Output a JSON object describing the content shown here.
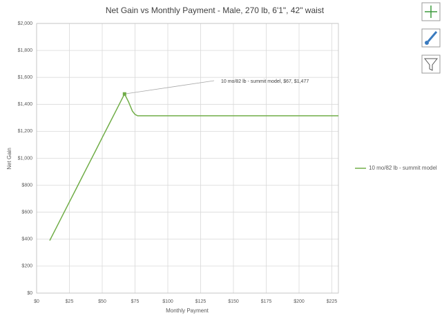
{
  "chart_data": {
    "type": "line",
    "title": "Net Gain vs Monthly Payment - Male, 270 lb, 6'1\", 42\" waist",
    "x_label": "Monthly Payment",
    "y_label": "Net Gain",
    "x": [
      10,
      15,
      20,
      25,
      30,
      35,
      40,
      45,
      50,
      55,
      60,
      65,
      67,
      70,
      73,
      75,
      77,
      80,
      100,
      150,
      200,
      230
    ],
    "series": [
      {
        "name": "10 mo/82 lb - summit model",
        "color": "#70ad47",
        "values": [
          390,
          485,
          581,
          676,
          771,
          867,
          962,
          1057,
          1153,
          1248,
          1343,
          1439,
          1477,
          1420,
          1350,
          1325,
          1315,
          1315,
          1315,
          1315,
          1315,
          1315
        ]
      }
    ],
    "annotation": "10 mo/82 lb - summit model, $67, $1,477",
    "xlim": [
      0,
      230
    ],
    "xticks": [
      {
        "value": 0,
        "label": "$0"
      },
      {
        "value": 25,
        "label": "$25"
      },
      {
        "value": 50,
        "label": "$50"
      },
      {
        "value": 75,
        "label": "$75"
      },
      {
        "value": 100,
        "label": "$100"
      },
      {
        "value": 125,
        "label": "$125"
      },
      {
        "value": 150,
        "label": "$150"
      },
      {
        "value": 175,
        "label": "$175"
      },
      {
        "value": 200,
        "label": "$200"
      },
      {
        "value": 225,
        "label": "$225"
      }
    ],
    "ylim": [
      0,
      2000
    ],
    "yticks": [
      {
        "value": 0,
        "label": "$0"
      },
      {
        "value": 200,
        "label": "$200"
      },
      {
        "value": 400,
        "label": "$400"
      },
      {
        "value": 600,
        "label": "$600"
      },
      {
        "value": 800,
        "label": "$800"
      },
      {
        "value": 1000,
        "label": "$1,000"
      },
      {
        "value": 1200,
        "label": "$1,200"
      },
      {
        "value": 1400,
        "label": "$1,400"
      },
      {
        "value": 1600,
        "label": "$1,600"
      },
      {
        "value": 1800,
        "label": "$1,800"
      },
      {
        "value": 2000,
        "label": "$2,000"
      }
    ],
    "grid": true
  }
}
